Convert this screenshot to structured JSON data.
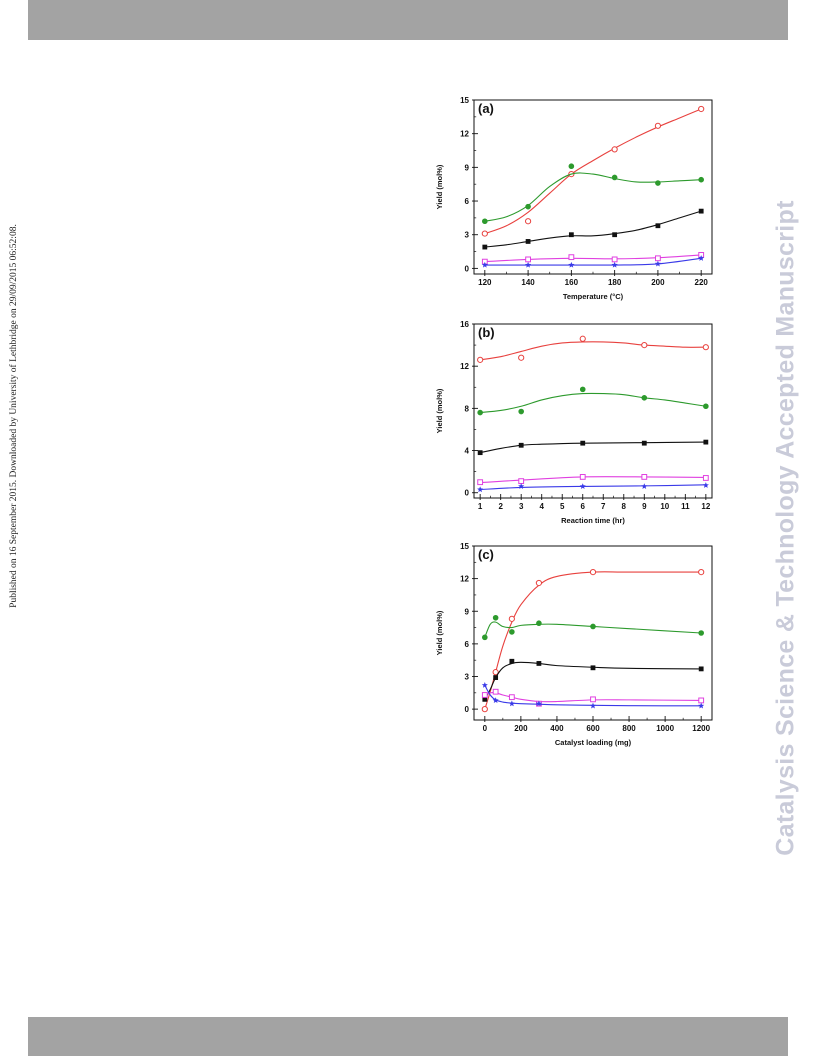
{
  "side_note": "Published on 16 September 2015. Downloaded by University of Lethbridge on 29/09/2015 06:52:08.",
  "watermark": "Catalysis Science & Technology Accepted Manuscript",
  "chart_data": [
    {
      "type": "scatter",
      "panel": "(a)",
      "xlabel": "Temperature (°C)",
      "ylabel": "Yield (mol%)",
      "xlim": [
        115,
        225
      ],
      "ylim": [
        -0.5,
        15
      ],
      "xticks": [
        120,
        140,
        160,
        180,
        200,
        220
      ],
      "yticks": [
        0,
        3,
        6,
        9,
        12,
        15
      ],
      "grid": false,
      "series": [
        {
          "marker": "open-circle",
          "color": "#e8413e",
          "x": [
            120,
            140,
            160,
            180,
            200,
            220
          ],
          "y": [
            3.1,
            4.2,
            8.4,
            10.6,
            12.7,
            14.2
          ],
          "curve_x": [
            120,
            130,
            140,
            150,
            160,
            170,
            180,
            190,
            200,
            210,
            220
          ],
          "curve_y": [
            3.1,
            3.8,
            5.0,
            6.7,
            8.4,
            9.6,
            10.7,
            11.7,
            12.6,
            13.4,
            14.2
          ]
        },
        {
          "marker": "filled-circle",
          "color": "#2d9a2d",
          "x": [
            120,
            140,
            160,
            180,
            200,
            220
          ],
          "y": [
            4.2,
            5.5,
            9.1,
            8.1,
            7.6,
            7.9
          ],
          "curve_x": [
            120,
            130,
            140,
            150,
            160,
            170,
            180,
            190,
            200,
            210,
            220
          ],
          "curve_y": [
            4.2,
            4.6,
            5.6,
            7.3,
            8.4,
            8.4,
            8.0,
            7.7,
            7.7,
            7.8,
            7.9
          ]
        },
        {
          "marker": "filled-square",
          "color": "#111111",
          "x": [
            120,
            140,
            160,
            180,
            200,
            220
          ],
          "y": [
            1.9,
            2.4,
            3.0,
            3.0,
            3.8,
            5.1
          ],
          "curve_x": [
            120,
            130,
            140,
            150,
            160,
            170,
            180,
            190,
            200,
            210,
            220
          ],
          "curve_y": [
            1.9,
            2.1,
            2.4,
            2.7,
            2.9,
            2.9,
            3.1,
            3.4,
            3.9,
            4.5,
            5.1
          ]
        },
        {
          "marker": "open-square",
          "color": "#e040e0",
          "x": [
            120,
            140,
            160,
            180,
            200,
            220
          ],
          "y": [
            0.6,
            0.8,
            1.0,
            0.8,
            0.9,
            1.2
          ],
          "curve_x": [
            120,
            140,
            160,
            180,
            200,
            220
          ],
          "curve_y": [
            0.6,
            0.8,
            0.9,
            0.85,
            0.95,
            1.2
          ]
        },
        {
          "marker": "filled-star",
          "color": "#3a3ae8",
          "x": [
            120,
            140,
            160,
            180,
            200,
            220
          ],
          "y": [
            0.3,
            0.3,
            0.3,
            0.3,
            0.4,
            0.9
          ],
          "curve_x": [
            120,
            140,
            160,
            180,
            200,
            220
          ],
          "curve_y": [
            0.3,
            0.3,
            0.3,
            0.3,
            0.4,
            0.9
          ]
        }
      ]
    },
    {
      "type": "scatter",
      "panel": "(b)",
      "xlabel": "Reaction time (hr)",
      "ylabel": "Yield (mol%)",
      "xlim": [
        0.7,
        12.3
      ],
      "ylim": [
        -0.5,
        16
      ],
      "xticks": [
        1,
        2,
        3,
        4,
        5,
        6,
        7,
        8,
        9,
        10,
        11,
        12
      ],
      "yticks": [
        0,
        4,
        8,
        12,
        16
      ],
      "grid": false,
      "series": [
        {
          "marker": "open-circle",
          "color": "#e8413e",
          "x": [
            1,
            3,
            6,
            9,
            12
          ],
          "y": [
            12.6,
            12.8,
            14.6,
            14.0,
            13.8
          ],
          "curve_x": [
            1,
            2,
            3,
            4,
            5,
            6,
            7,
            8,
            9,
            10,
            11,
            12
          ],
          "curve_y": [
            12.6,
            12.9,
            13.4,
            13.9,
            14.2,
            14.3,
            14.3,
            14.2,
            14.0,
            13.9,
            13.8,
            13.8
          ]
        },
        {
          "marker": "filled-circle",
          "color": "#2d9a2d",
          "x": [
            1,
            3,
            6,
            9,
            12
          ],
          "y": [
            7.6,
            7.7,
            9.8,
            9.0,
            8.2
          ],
          "curve_x": [
            1,
            2,
            3,
            4,
            5,
            6,
            7,
            8,
            9,
            10,
            11,
            12
          ],
          "curve_y": [
            7.6,
            7.8,
            8.2,
            8.8,
            9.2,
            9.4,
            9.4,
            9.3,
            9.0,
            8.8,
            8.5,
            8.2
          ]
        },
        {
          "marker": "filled-square",
          "color": "#111111",
          "x": [
            1,
            3,
            6,
            9,
            12
          ],
          "y": [
            3.8,
            4.5,
            4.7,
            4.7,
            4.8
          ],
          "curve_x": [
            1,
            2,
            3,
            4,
            6,
            9,
            12
          ],
          "curve_y": [
            3.8,
            4.2,
            4.5,
            4.6,
            4.7,
            4.75,
            4.8
          ]
        },
        {
          "marker": "open-square",
          "color": "#e040e0",
          "x": [
            1,
            3,
            6,
            9,
            12
          ],
          "y": [
            1.0,
            1.1,
            1.5,
            1.5,
            1.4
          ],
          "curve_x": [
            1,
            3,
            6,
            9,
            12
          ],
          "curve_y": [
            0.95,
            1.2,
            1.5,
            1.5,
            1.45
          ]
        },
        {
          "marker": "filled-star",
          "color": "#3a3ae8",
          "x": [
            1,
            3,
            6,
            9,
            12
          ],
          "y": [
            0.3,
            0.6,
            0.6,
            0.6,
            0.7
          ],
          "curve_x": [
            1,
            3,
            6,
            9,
            12
          ],
          "curve_y": [
            0.3,
            0.5,
            0.6,
            0.65,
            0.75
          ]
        }
      ]
    },
    {
      "type": "scatter",
      "panel": "(c)",
      "xlabel": "Catalyst loading (mg)",
      "ylabel": "Yield (mol%)",
      "xlim": [
        -60,
        1260
      ],
      "ylim": [
        -1,
        15
      ],
      "xticks": [
        0,
        200,
        400,
        600,
        800,
        1000,
        1200
      ],
      "yticks": [
        0,
        3,
        6,
        9,
        12,
        15
      ],
      "grid": false,
      "series": [
        {
          "marker": "open-circle",
          "color": "#e8413e",
          "x": [
            0,
            60,
            150,
            300,
            600,
            1200
          ],
          "y": [
            0.0,
            3.4,
            8.3,
            11.6,
            12.6,
            12.6
          ],
          "curve_x": [
            0,
            30,
            60,
            100,
            150,
            200,
            300,
            400,
            600,
            800,
            1200
          ],
          "curve_y": [
            0.0,
            1.6,
            3.4,
            5.8,
            8.0,
            9.6,
            11.4,
            12.2,
            12.6,
            12.6,
            12.6
          ]
        },
        {
          "marker": "filled-circle",
          "color": "#2d9a2d",
          "x": [
            0,
            60,
            150,
            300,
            600,
            1200
          ],
          "y": [
            6.6,
            8.4,
            7.1,
            7.9,
            7.6,
            7.0
          ],
          "curve_x": [
            0,
            30,
            60,
            100,
            150,
            200,
            300,
            400,
            600,
            800,
            1200
          ],
          "curve_y": [
            6.6,
            7.8,
            8.0,
            7.6,
            7.5,
            7.7,
            7.8,
            7.8,
            7.6,
            7.4,
            7.0
          ]
        },
        {
          "marker": "filled-square",
          "color": "#111111",
          "x": [
            0,
            60,
            150,
            300,
            600,
            1200
          ],
          "y": [
            0.9,
            2.9,
            4.4,
            4.2,
            3.8,
            3.7
          ],
          "curve_x": [
            0,
            30,
            60,
            100,
            150,
            200,
            300,
            400,
            600,
            800,
            1200
          ],
          "curve_y": [
            0.9,
            1.8,
            2.9,
            3.8,
            4.2,
            4.3,
            4.2,
            4.0,
            3.85,
            3.75,
            3.7
          ]
        },
        {
          "marker": "open-square",
          "color": "#e040e0",
          "x": [
            0,
            60,
            150,
            300,
            600,
            1200
          ],
          "y": [
            1.3,
            1.6,
            1.1,
            0.5,
            0.9,
            0.8
          ],
          "curve_x": [
            0,
            30,
            60,
            100,
            150,
            200,
            300,
            400,
            600,
            800,
            1200
          ],
          "curve_y": [
            1.3,
            1.5,
            1.5,
            1.3,
            1.1,
            0.9,
            0.7,
            0.7,
            0.85,
            0.85,
            0.8
          ]
        },
        {
          "marker": "filled-star",
          "color": "#3a3ae8",
          "x": [
            0,
            60,
            150,
            300,
            600,
            1200
          ],
          "y": [
            2.2,
            0.8,
            0.5,
            0.5,
            0.3,
            0.3
          ],
          "curve_x": [
            0,
            30,
            60,
            100,
            150,
            200,
            300,
            400,
            600,
            800,
            1200
          ],
          "curve_y": [
            2.2,
            1.3,
            0.85,
            0.65,
            0.55,
            0.5,
            0.45,
            0.4,
            0.35,
            0.32,
            0.3
          ]
        }
      ]
    }
  ]
}
